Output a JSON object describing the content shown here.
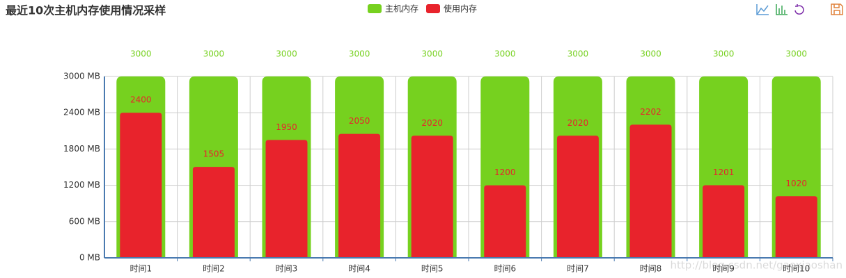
{
  "chart_data": {
    "type": "bar",
    "title": "最近10次主机内存使用情况采样",
    "categories": [
      "时间1",
      "时间2",
      "时间3",
      "时间4",
      "时间5",
      "时间6",
      "时间7",
      "时间8",
      "时间9",
      "时间10"
    ],
    "series": [
      {
        "name": "主机内存",
        "color": "#76d11f",
        "values": [
          3000,
          3000,
          3000,
          3000,
          3000,
          3000,
          3000,
          3000,
          3000,
          3000
        ]
      },
      {
        "name": "使用内存",
        "color": "#e8232c",
        "values": [
          2400,
          1505,
          1950,
          2050,
          2020,
          1200,
          2020,
          2202,
          1201,
          1020
        ]
      }
    ],
    "ylim": [
      0,
      3000
    ],
    "yticks": [
      {
        "value": 0,
        "label": "0 MB"
      },
      {
        "value": 600,
        "label": "600 MB"
      },
      {
        "value": 1200,
        "label": "1200 MB"
      },
      {
        "value": 1800,
        "label": "1800 MB"
      },
      {
        "value": 2400,
        "label": "2400 MB"
      },
      {
        "value": 3000,
        "label": "3000 MB"
      }
    ],
    "grid": true,
    "legend_position": "top",
    "watermark": "http://blog.csdn.net/gaoxiaoshan"
  }
}
